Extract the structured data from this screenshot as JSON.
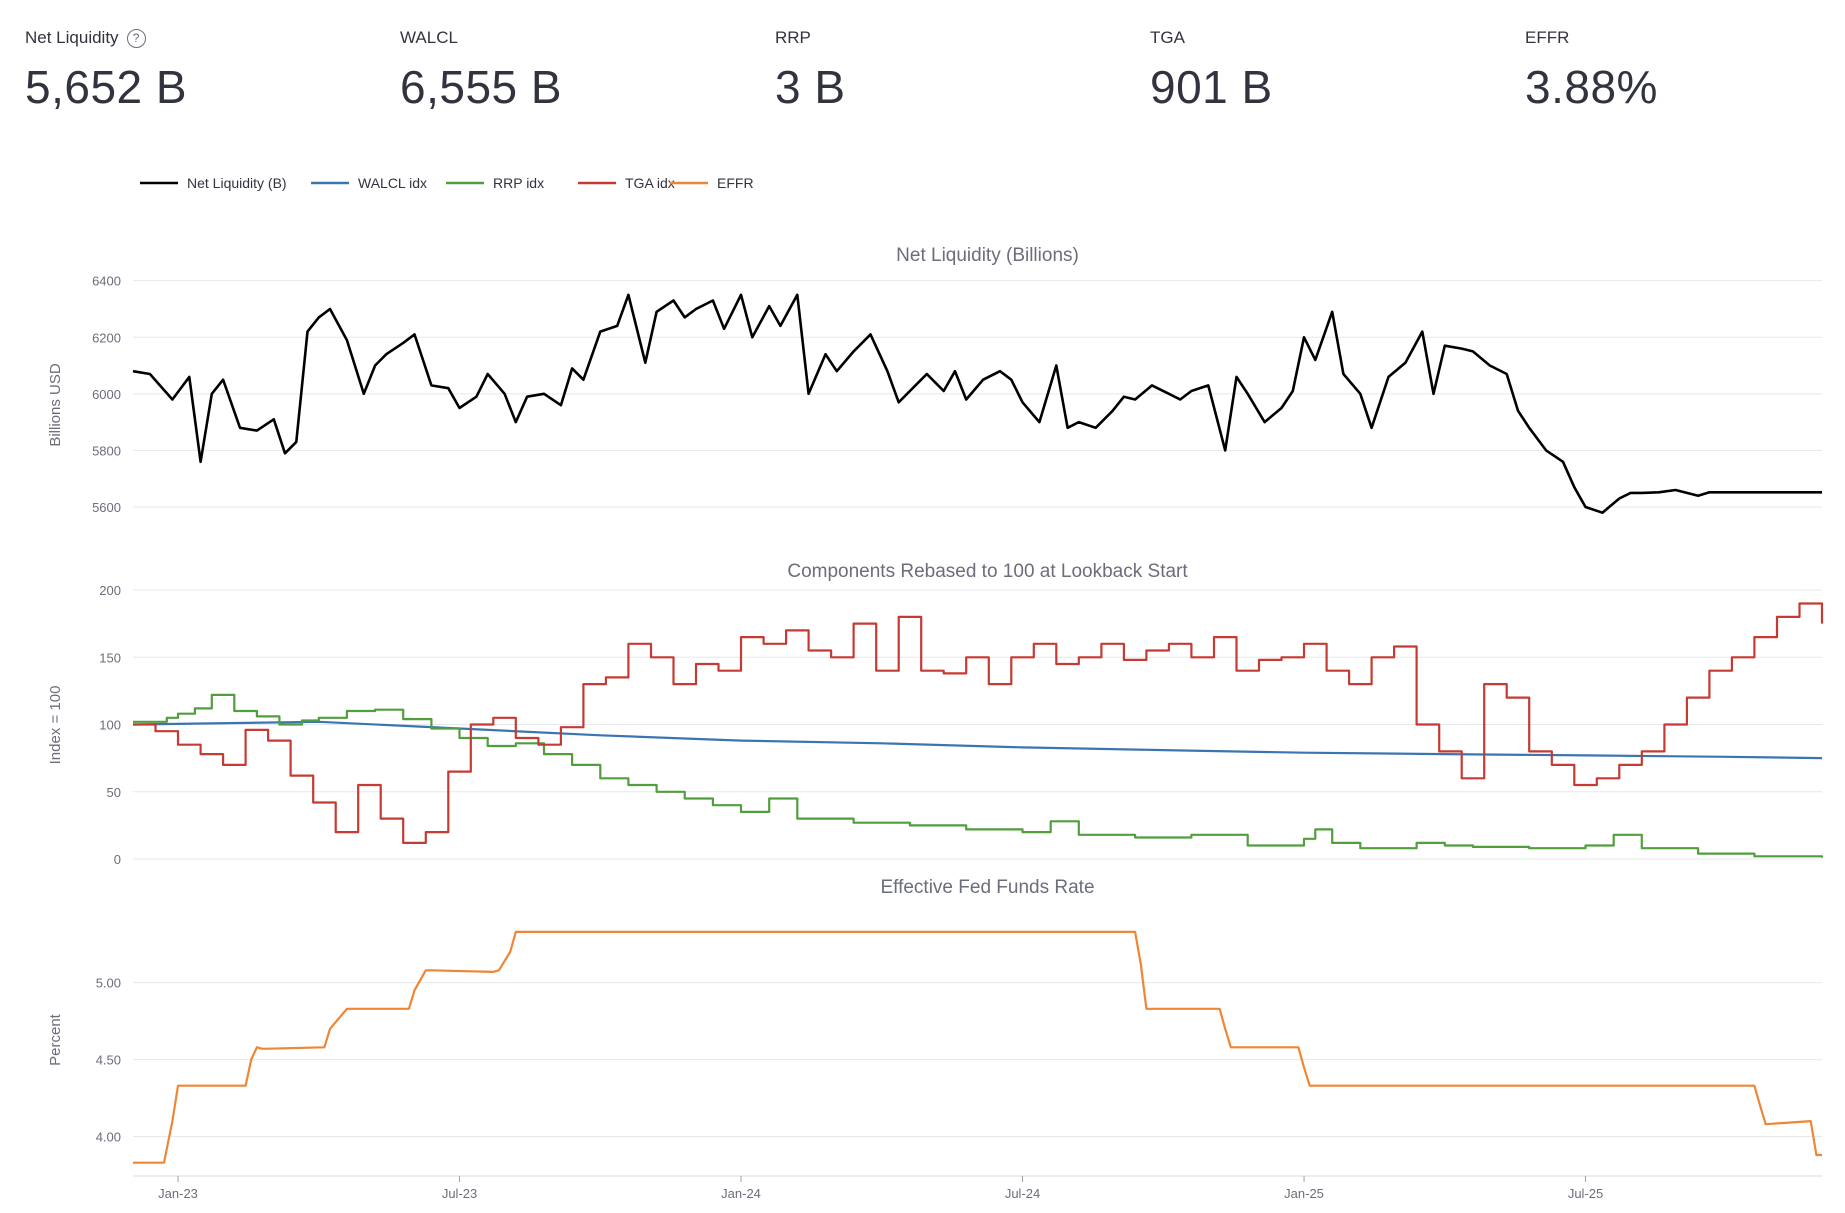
{
  "metrics": [
    {
      "label": "Net Liquidity",
      "value": "5,652 B",
      "help": "?"
    },
    {
      "label": "WALCL",
      "value": "6,555 B"
    },
    {
      "label": "RRP",
      "value": "3 B"
    },
    {
      "label": "TGA",
      "value": "901 B"
    },
    {
      "label": "EFFR",
      "value": "3.88%"
    }
  ],
  "legend": [
    {
      "name": "Net Liquidity (B)",
      "color": "#000000"
    },
    {
      "name": "WALCL idx",
      "color": "#3b75af"
    },
    {
      "name": "RRP idx",
      "color": "#519e3e"
    },
    {
      "name": "TGA idx",
      "color": "#c53a32"
    },
    {
      "name": "EFFR",
      "color": "#ef8636"
    }
  ],
  "x_ticks": [
    "Jan-23",
    "Jul-23",
    "Jan-24",
    "Jul-24",
    "Jan-25",
    "Jul-25"
  ],
  "chart_data": [
    {
      "type": "line",
      "title": "Net Liquidity (Billions)",
      "ylabel": "Billions USD",
      "ylim": [
        5540,
        6420
      ],
      "yticks": [
        "5600",
        "5800",
        "6000",
        "6200",
        "6400"
      ],
      "x_range": [
        2022.92,
        2025.92
      ],
      "series": [
        {
          "name": "Net Liquidity (B)",
          "color": "#000000",
          "x": [
            2022.92,
            2022.95,
            2022.99,
            2023.02,
            2023.04,
            2023.06,
            2023.08,
            2023.11,
            2023.14,
            2023.17,
            2023.19,
            2023.21,
            2023.23,
            2023.25,
            2023.27,
            2023.3,
            2023.33,
            2023.35,
            2023.37,
            2023.4,
            2023.42,
            2023.45,
            2023.48,
            2023.5,
            2023.53,
            2023.55,
            2023.58,
            2023.6,
            2023.62,
            2023.65,
            2023.68,
            2023.7,
            2023.72,
            2023.75,
            2023.78,
            2023.8,
            2023.83,
            2023.85,
            2023.88,
            2023.9,
            2023.92,
            2023.95,
            2023.97,
            2024.0,
            2024.02,
            2024.05,
            2024.07,
            2024.1,
            2024.12,
            2024.15,
            2024.17,
            2024.2,
            2024.23,
            2024.26,
            2024.28,
            2024.3,
            2024.33,
            2024.36,
            2024.38,
            2024.4,
            2024.43,
            2024.46,
            2024.48,
            2024.5,
            2024.53,
            2024.56,
            2024.58,
            2024.6,
            2024.63,
            2024.66,
            2024.68,
            2024.7,
            2024.73,
            2024.76,
            2024.78,
            2024.8,
            2024.83,
            2024.86,
            2024.88,
            2024.9,
            2024.93,
            2024.96,
            2024.98,
            2025.0,
            2025.02,
            2025.05,
            2025.07,
            2025.1,
            2025.12,
            2025.15,
            2025.18,
            2025.21,
            2025.23,
            2025.25,
            2025.28,
            2025.3,
            2025.33,
            2025.36,
            2025.38,
            2025.4,
            2025.43,
            2025.46,
            2025.48,
            2025.5,
            2025.53,
            2025.56,
            2025.58,
            2025.6,
            2025.63,
            2025.66,
            2025.68,
            2025.7,
            2025.72,
            2025.75,
            2025.78,
            2025.8,
            2025.83,
            2025.86,
            2025.88,
            2025.9,
            2025.92
          ],
          "y": [
            6080,
            6070,
            5980,
            6060,
            5760,
            6000,
            6050,
            5880,
            5870,
            5910,
            5790,
            5830,
            6220,
            6270,
            6300,
            6190,
            6000,
            6100,
            6140,
            6180,
            6210,
            6030,
            6020,
            5950,
            5990,
            6070,
            6000,
            5900,
            5990,
            6000,
            5960,
            6090,
            6050,
            6220,
            6240,
            6350,
            6110,
            6290,
            6330,
            6270,
            6300,
            6330,
            6230,
            6350,
            6200,
            6310,
            6240,
            6350,
            6000,
            6140,
            6080,
            6150,
            6210,
            6080,
            5970,
            6010,
            6070,
            6010,
            6080,
            5980,
            6050,
            6080,
            6050,
            5970,
            5900,
            6100,
            5880,
            5900,
            5880,
            5940,
            5990,
            5980,
            6030,
            6000,
            5980,
            6010,
            6030,
            5800,
            6060,
            6000,
            5900,
            5950,
            6010,
            6200,
            6120,
            6290,
            6070,
            6000,
            5880,
            6060,
            6110,
            6220,
            6000,
            6170,
            6160,
            6150,
            6100,
            6070,
            5940,
            5880,
            5800,
            5760,
            5670,
            5600,
            5580,
            5630,
            5650,
            5650,
            5652,
            5660,
            5650,
            5640,
            5652,
            5652,
            5652,
            5652,
            5652,
            5652,
            5652,
            5652,
            5652
          ],
          "comment": ""
        }
      ]
    },
    {
      "type": "line",
      "title": "Components Rebased to 100 at Lookback Start",
      "ylabel": "Index = 100",
      "ylim": [
        0,
        200
      ],
      "yticks": [
        "0",
        "50",
        "100",
        "150",
        "200"
      ],
      "x_range": [
        2022.92,
        2025.92
      ],
      "series": [
        {
          "name": "WALCL idx",
          "color": "#3b75af",
          "x": [
            2022.92,
            2023.25,
            2023.5,
            2023.75,
            2024.0,
            2024.25,
            2024.5,
            2024.75,
            2025.0,
            2025.25,
            2025.5,
            2025.75,
            2025.92
          ],
          "y": [
            100,
            102,
            97,
            92,
            88,
            86,
            83,
            81,
            79,
            78,
            77,
            76,
            75
          ]
        },
        {
          "name": "RRP idx",
          "color": "#519e3e",
          "x": [
            2022.92,
            2022.98,
            2023.0,
            2023.03,
            2023.06,
            2023.1,
            2023.14,
            2023.18,
            2023.22,
            2023.25,
            2023.3,
            2023.35,
            2023.4,
            2023.45,
            2023.5,
            2023.55,
            2023.6,
            2023.65,
            2023.7,
            2023.75,
            2023.8,
            2023.85,
            2023.9,
            2023.95,
            2024.0,
            2024.05,
            2024.1,
            2024.2,
            2024.3,
            2024.4,
            2024.5,
            2024.55,
            2024.6,
            2024.7,
            2024.8,
            2024.9,
            2025.0,
            2025.02,
            2025.05,
            2025.1,
            2025.2,
            2025.25,
            2025.3,
            2025.4,
            2025.5,
            2025.55,
            2025.6,
            2025.7,
            2025.8,
            2025.92
          ],
          "y": [
            102,
            105,
            108,
            112,
            122,
            110,
            106,
            100,
            103,
            105,
            110,
            111,
            104,
            97,
            90,
            84,
            86,
            78,
            70,
            60,
            55,
            50,
            45,
            40,
            35,
            45,
            30,
            27,
            25,
            22,
            20,
            28,
            18,
            16,
            18,
            10,
            15,
            22,
            12,
            8,
            12,
            10,
            9,
            8,
            10,
            18,
            8,
            4,
            2,
            1
          ]
        },
        {
          "name": "TGA idx",
          "color": "#c53a32",
          "x": [
            2022.92,
            2022.96,
            2023.0,
            2023.04,
            2023.08,
            2023.12,
            2023.16,
            2023.2,
            2023.24,
            2023.28,
            2023.32,
            2023.36,
            2023.4,
            2023.44,
            2023.48,
            2023.52,
            2023.56,
            2023.6,
            2023.64,
            2023.68,
            2023.72,
            2023.76,
            2023.8,
            2023.84,
            2023.88,
            2023.92,
            2023.96,
            2024.0,
            2024.04,
            2024.08,
            2024.12,
            2024.16,
            2024.2,
            2024.24,
            2024.28,
            2024.32,
            2024.36,
            2024.4,
            2024.44,
            2024.48,
            2024.52,
            2024.56,
            2024.6,
            2024.64,
            2024.68,
            2024.72,
            2024.76,
            2024.8,
            2024.84,
            2024.88,
            2024.92,
            2024.96,
            2025.0,
            2025.04,
            2025.08,
            2025.12,
            2025.16,
            2025.2,
            2025.24,
            2025.28,
            2025.32,
            2025.36,
            2025.4,
            2025.44,
            2025.48,
            2025.52,
            2025.56,
            2025.6,
            2025.64,
            2025.68,
            2025.72,
            2025.76,
            2025.8,
            2025.84,
            2025.88,
            2025.92
          ],
          "y": [
            100,
            95,
            85,
            78,
            70,
            96,
            88,
            62,
            42,
            20,
            55,
            30,
            12,
            20,
            65,
            100,
            105,
            90,
            85,
            98,
            130,
            135,
            160,
            150,
            130,
            145,
            140,
            165,
            160,
            170,
            155,
            150,
            175,
            140,
            180,
            140,
            138,
            150,
            130,
            150,
            160,
            145,
            150,
            160,
            148,
            155,
            160,
            150,
            165,
            140,
            148,
            150,
            160,
            140,
            130,
            150,
            158,
            100,
            80,
            60,
            130,
            120,
            80,
            70,
            55,
            60,
            70,
            80,
            100,
            120,
            140,
            150,
            165,
            180,
            190,
            175
          ]
        }
      ]
    },
    {
      "type": "line",
      "title": "Effective Fed Funds Rate",
      "ylabel": "Percent",
      "ylim": [
        3.75,
        5.42
      ],
      "yticks": [
        "4.00",
        "4.50",
        "5.00"
      ],
      "x_range": [
        2022.92,
        2025.92
      ],
      "series": [
        {
          "name": "EFFR",
          "color": "#ef8636",
          "x": [
            2022.92,
            2022.975,
            2022.99,
            2023.0,
            2023.12,
            2023.13,
            2023.14,
            2023.15,
            2023.26,
            2023.27,
            2023.3,
            2023.31,
            2023.41,
            2023.42,
            2023.44,
            2023.45,
            2023.56,
            2023.57,
            2023.59,
            2023.6,
            2024.1,
            2024.2,
            2024.3,
            2024.4,
            2024.6,
            2024.7,
            2024.71,
            2024.72,
            2024.73,
            2024.85,
            2024.86,
            2024.87,
            2024.88,
            2024.99,
            2025.0,
            2025.01,
            2025.6,
            2025.7,
            2025.8,
            2025.81,
            2025.82,
            2025.9,
            2025.91,
            2025.92
          ],
          "y": [
            3.83,
            3.83,
            4.1,
            4.33,
            4.33,
            4.5,
            4.58,
            4.57,
            4.58,
            4.7,
            4.83,
            4.83,
            4.83,
            4.95,
            5.08,
            5.08,
            5.07,
            5.08,
            5.2,
            5.33,
            5.33,
            5.33,
            5.33,
            5.33,
            5.33,
            5.33,
            5.12,
            4.83,
            4.83,
            4.83,
            4.7,
            4.58,
            4.58,
            4.58,
            4.45,
            4.33,
            4.33,
            4.33,
            4.33,
            4.2,
            4.08,
            4.1,
            3.88,
            3.88
          ]
        }
      ]
    }
  ]
}
